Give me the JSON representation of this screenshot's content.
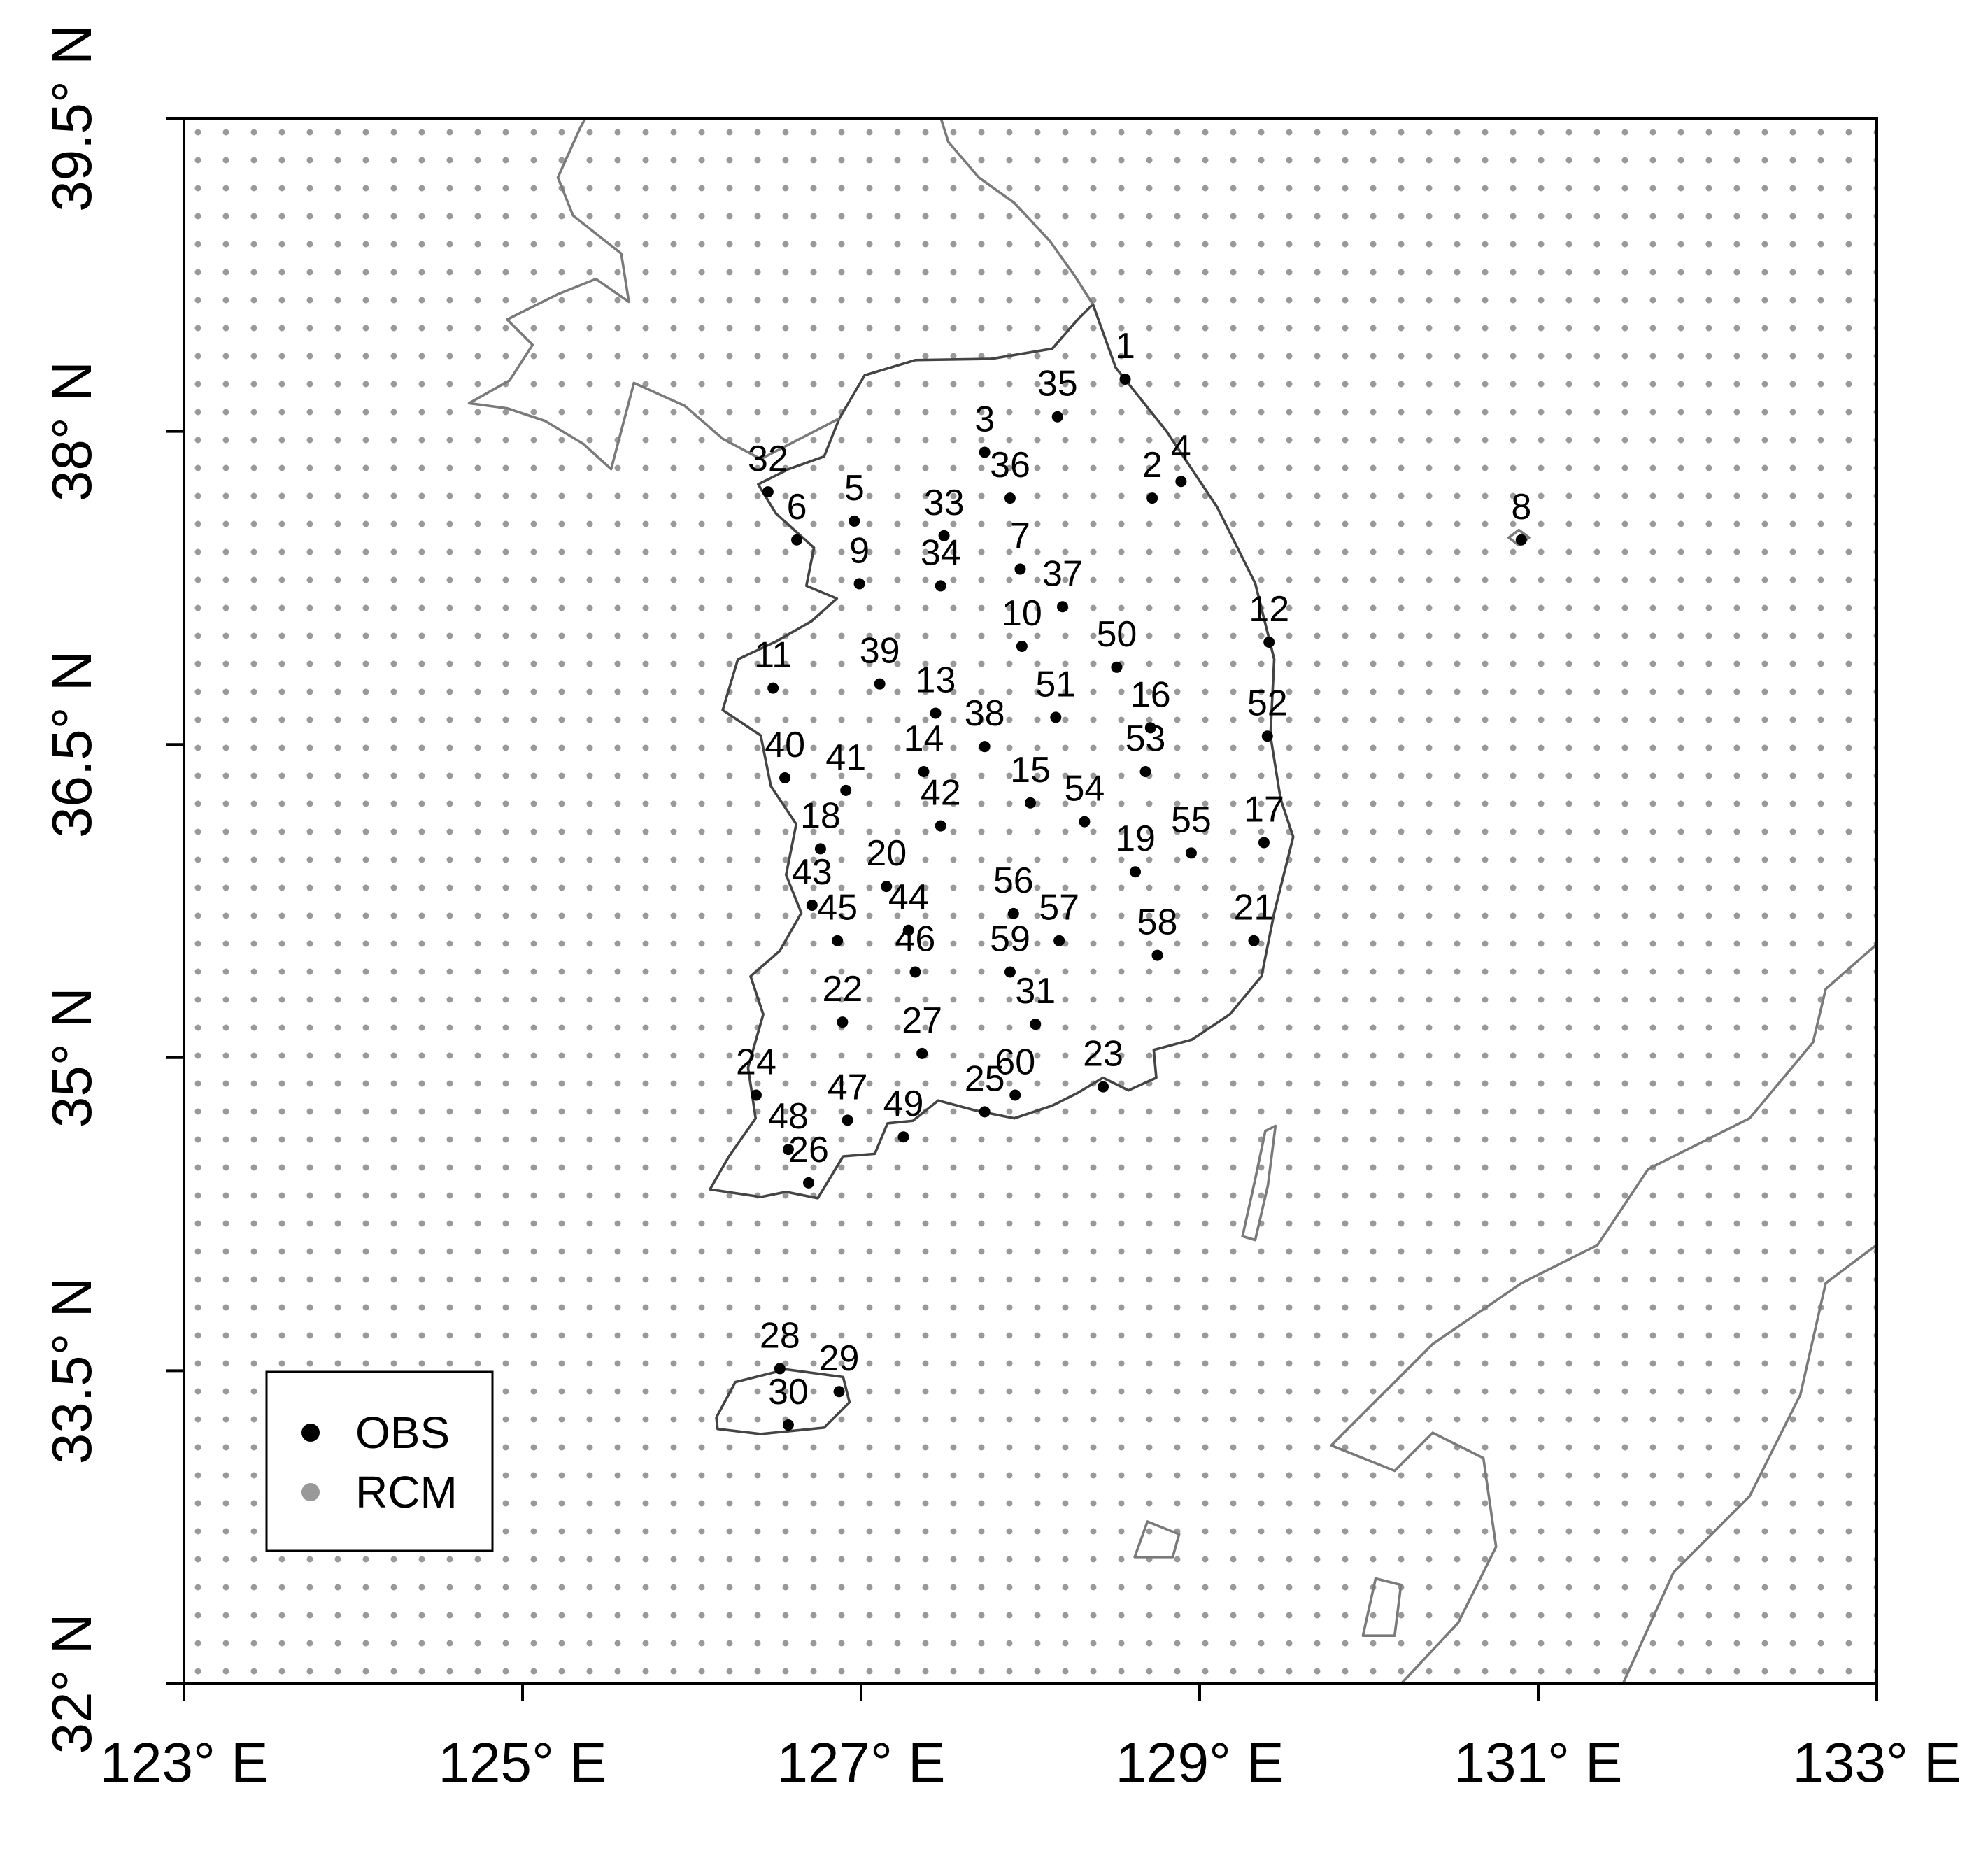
{
  "chart_data": {
    "type": "scatter",
    "xlim": [
      123,
      133
    ],
    "ylim": [
      32,
      39.5
    ],
    "xticks": [
      {
        "value": 123,
        "label": "123° E"
      },
      {
        "value": 125,
        "label": "125° E"
      },
      {
        "value": 127,
        "label": "127° E"
      },
      {
        "value": 129,
        "label": "129° E"
      },
      {
        "value": 131,
        "label": "131° E"
      },
      {
        "value": 133,
        "label": "133° E"
      }
    ],
    "yticks": [
      {
        "value": 32,
        "label": "32° N"
      },
      {
        "value": 33.5,
        "label": "33.5° N"
      },
      {
        "value": 35,
        "label": "35° N"
      },
      {
        "value": 36.5,
        "label": "36.5° N"
      },
      {
        "value": 38,
        "label": "38° N"
      },
      {
        "value": 39.5,
        "label": "39.5° N"
      }
    ],
    "series": [
      {
        "name": "OBS",
        "color": "#000000",
        "labels": [
          "1",
          "2",
          "3",
          "4",
          "5",
          "6",
          "7",
          "8",
          "9",
          "10",
          "11",
          "12",
          "13",
          "14",
          "15",
          "16",
          "17",
          "18",
          "19",
          "20",
          "21",
          "22",
          "23",
          "24",
          "25",
          "26",
          "27",
          "28",
          "29",
          "30",
          "31",
          "32",
          "33",
          "34",
          "35",
          "36",
          "37",
          "38",
          "39",
          "40",
          "41",
          "42",
          "43",
          "44",
          "45",
          "46",
          "47",
          "48",
          "49",
          "50",
          "51",
          "52",
          "53",
          "54",
          "55",
          "56",
          "57",
          "58",
          "59",
          "60"
        ],
        "x": [
          128.56,
          128.72,
          127.73,
          128.89,
          126.96,
          126.62,
          127.94,
          130.9,
          126.99,
          127.95,
          126.48,
          129.41,
          127.44,
          127.37,
          128.0,
          128.71,
          129.38,
          126.76,
          128.62,
          127.15,
          129.32,
          126.89,
          128.43,
          126.38,
          127.73,
          126.69,
          127.36,
          126.52,
          126.87,
          126.57,
          128.03,
          126.45,
          127.49,
          127.47,
          128.16,
          127.88,
          128.19,
          127.73,
          127.11,
          126.55,
          126.91,
          127.47,
          126.71,
          127.28,
          126.86,
          127.32,
          126.92,
          126.57,
          127.25,
          128.51,
          128.15,
          129.4,
          128.68,
          128.32,
          128.95,
          127.9,
          128.17,
          128.75,
          127.88,
          127.91
        ],
        "y": [
          38.25,
          37.68,
          37.9,
          37.76,
          37.57,
          37.48,
          37.34,
          37.48,
          37.27,
          36.97,
          36.77,
          36.99,
          36.65,
          36.37,
          36.22,
          36.58,
          36.03,
          36.0,
          35.89,
          35.82,
          35.56,
          35.17,
          34.86,
          34.82,
          34.74,
          34.4,
          35.02,
          33.51,
          33.4,
          33.24,
          35.16,
          37.71,
          37.5,
          37.26,
          38.07,
          37.68,
          37.16,
          36.49,
          36.79,
          36.34,
          36.28,
          36.11,
          35.73,
          35.61,
          35.56,
          35.41,
          34.7,
          34.56,
          34.62,
          36.87,
          36.63,
          36.54,
          36.37,
          36.13,
          35.98,
          35.69,
          35.56,
          35.49,
          35.41,
          34.82
        ]
      },
      {
        "name": "RCM",
        "color": "#999999"
      }
    ]
  }
}
